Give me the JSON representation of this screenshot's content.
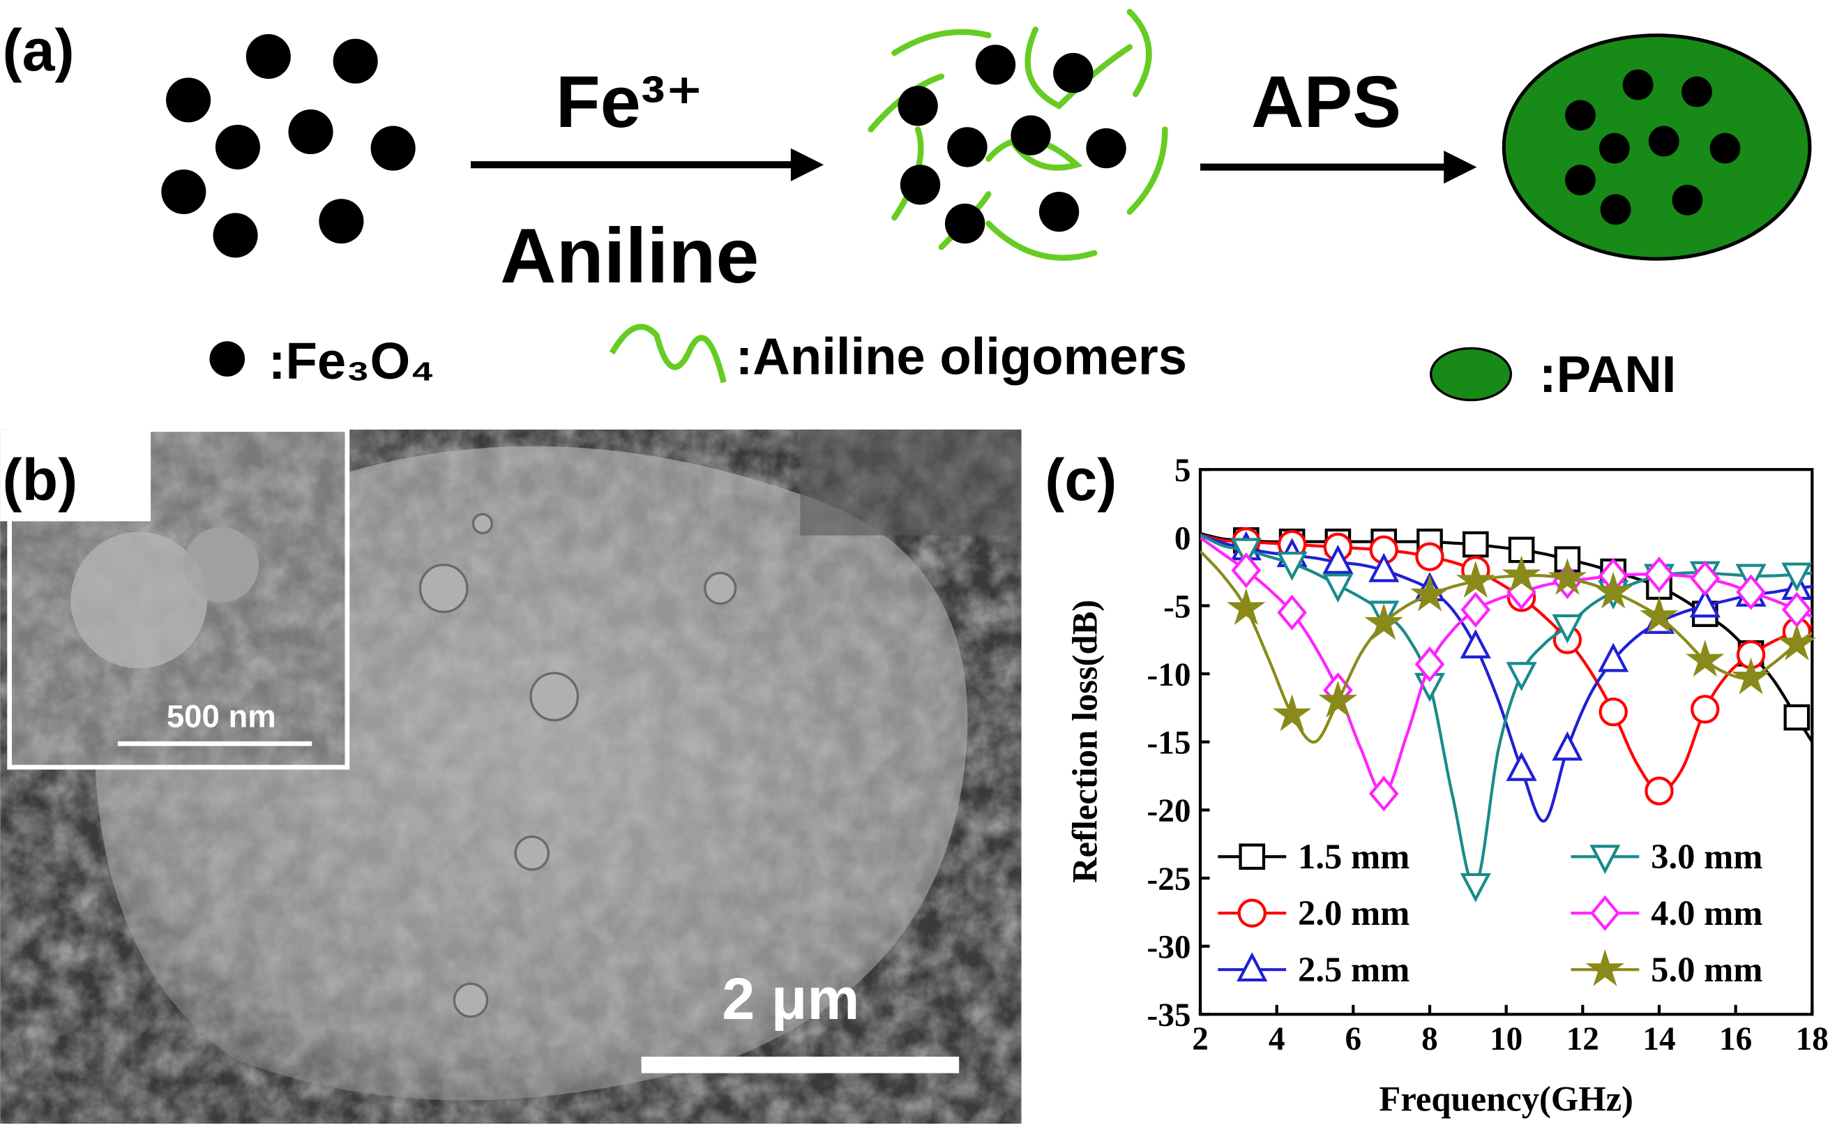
{
  "panel_a": {
    "label": "(a)",
    "arrow1_top": "Fe³⁺",
    "arrow1_bottom": "Aniline",
    "arrow2_top": "APS",
    "legend": [
      ":Fe₃O₄",
      ":Aniline oligomers",
      ":PANI"
    ]
  },
  "panel_b": {
    "label": "(b)",
    "inset_scale": "500 nm",
    "scale": "2 μm"
  },
  "chart_data": {
    "type": "line",
    "panel_label": "(c)",
    "x_label": "Frequency(GHz)",
    "y_label": "Reflection loss(dB)",
    "x": [
      2.0,
      2.6,
      3.2,
      3.8,
      4.4,
      5.0,
      5.6,
      6.2,
      6.8,
      7.4,
      8.0,
      8.6,
      9.2,
      9.8,
      10.4,
      11.0,
      11.6,
      12.2,
      12.8,
      13.4,
      14.0,
      14.6,
      15.2,
      15.8,
      16.4,
      17.0,
      17.6,
      18.0
    ],
    "xlim": [
      2,
      18
    ],
    "xticks": [
      2,
      4,
      6,
      8,
      10,
      12,
      14,
      16,
      18
    ],
    "ylim": [
      -35,
      5
    ],
    "yticks": [
      5,
      0,
      -5,
      -10,
      -15,
      -20,
      -25,
      -30,
      -35
    ],
    "grid": false,
    "series": [
      {
        "name": "1.5 mm",
        "color": "#000000",
        "marker": "square",
        "values": [
          0.3,
          -0.1,
          -0.2,
          -0.3,
          -0.3,
          -0.3,
          -0.3,
          -0.3,
          -0.3,
          -0.3,
          -0.3,
          -0.4,
          -0.5,
          -0.7,
          -0.9,
          -1.2,
          -1.6,
          -2.0,
          -2.5,
          -3.0,
          -3.6,
          -4.5,
          -5.6,
          -6.8,
          -8.5,
          -10.5,
          -13.2,
          -15.0
        ]
      },
      {
        "name": "2.0 mm",
        "color": "#ff0000",
        "marker": "circle",
        "values": [
          0.2,
          -0.2,
          -0.3,
          -0.4,
          -0.5,
          -0.6,
          -0.7,
          -0.8,
          -0.9,
          -1.1,
          -1.4,
          -1.8,
          -2.4,
          -3.3,
          -4.4,
          -5.8,
          -7.5,
          -9.8,
          -12.8,
          -16.5,
          -18.6,
          -17.0,
          -12.6,
          -10.0,
          -8.6,
          -7.6,
          -6.9,
          -6.5
        ]
      },
      {
        "name": "2.5 mm",
        "color": "#1f1fd6",
        "marker": "triangle-up",
        "values": [
          0.2,
          -0.4,
          -0.8,
          -1.1,
          -1.3,
          -1.5,
          -1.8,
          -2.0,
          -2.4,
          -3.0,
          -3.8,
          -5.3,
          -8.0,
          -12.0,
          -17.0,
          -20.8,
          -15.5,
          -11.5,
          -9.0,
          -7.3,
          -6.2,
          -5.5,
          -5.0,
          -4.6,
          -4.2,
          -4.0,
          -3.7,
          -3.6
        ]
      },
      {
        "name": "3.0 mm",
        "color": "#1a8a8a",
        "marker": "triangle-down",
        "values": [
          0.2,
          -0.6,
          -0.9,
          -1.4,
          -1.9,
          -2.6,
          -3.5,
          -4.4,
          -5.5,
          -7.2,
          -10.8,
          -19.0,
          -25.5,
          -15.5,
          -10.0,
          -7.8,
          -6.5,
          -5.0,
          -4.0,
          -3.3,
          -2.8,
          -2.6,
          -2.6,
          -2.7,
          -2.8,
          -2.8,
          -2.7,
          -2.6
        ]
      },
      {
        "name": "4.0 mm",
        "color": "#ff22ff",
        "marker": "diamond",
        "values": [
          0.0,
          -1.2,
          -2.4,
          -3.8,
          -5.5,
          -8.0,
          -11.2,
          -15.5,
          -18.8,
          -14.5,
          -9.3,
          -6.8,
          -5.3,
          -4.5,
          -4.0,
          -3.5,
          -3.2,
          -3.0,
          -2.8,
          -2.7,
          -2.7,
          -2.8,
          -3.0,
          -3.4,
          -4.0,
          -4.6,
          -5.3,
          -5.8
        ]
      },
      {
        "name": "5.0 mm",
        "color": "#8a8a1a",
        "marker": "star",
        "values": [
          -1.0,
          -2.8,
          -5.2,
          -9.0,
          -13.0,
          -15.0,
          -12.0,
          -8.5,
          -6.3,
          -5.0,
          -4.2,
          -3.6,
          -3.2,
          -2.9,
          -2.8,
          -2.8,
          -3.0,
          -3.4,
          -4.0,
          -4.8,
          -5.8,
          -7.3,
          -9.0,
          -10.0,
          -10.3,
          -9.2,
          -7.8,
          -7.0
        ]
      }
    ]
  }
}
